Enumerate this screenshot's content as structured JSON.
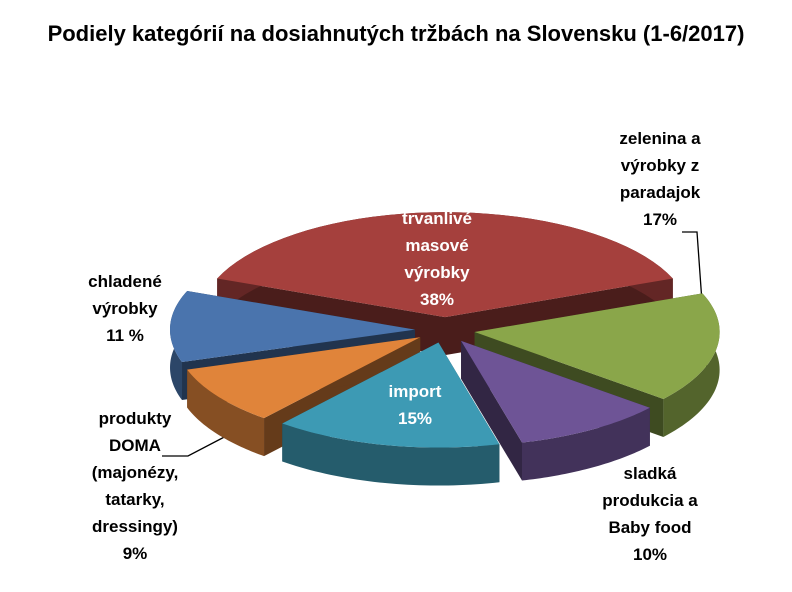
{
  "chart_data": {
    "type": "pie3d",
    "title": "Podiely kategórií na dosiahnutých tržbách na Slovensku (1-6/2017)",
    "categories": [
      "trvanlivé masové výrobky",
      "zelenina a výrobky z paradajok",
      "sladká produkcia a Baby food",
      "import",
      "produkty DOMA (majonézy, tatarky, dressingy)",
      "chladené výrobky"
    ],
    "values": [
      38,
      17,
      10,
      15,
      9,
      11
    ],
    "value_labels": [
      "38%",
      "17%",
      "10%",
      "15%",
      "9%",
      "11 %"
    ],
    "colors": [
      "#a5403d",
      "#8aa64a",
      "#6e5496",
      "#3d9ab4",
      "#e0843a",
      "#4a74ad"
    ]
  }
}
